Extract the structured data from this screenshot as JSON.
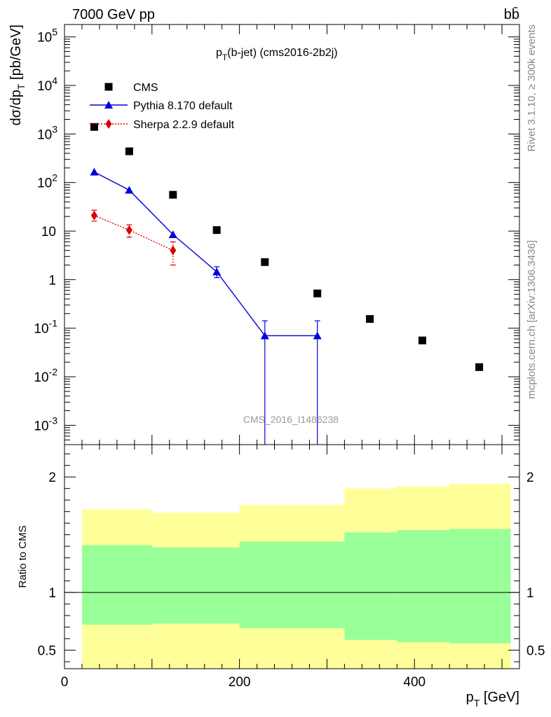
{
  "header": {
    "energy_label": "7000 GeV pp",
    "process_label": "bb̄"
  },
  "side_labels": {
    "rivet": "Rivet 3.1.10, ≥ 300k events",
    "mcplots": "mcplots.cern.ch [arXiv:1306.3436]"
  },
  "chart_data": [
    {
      "type": "scatter",
      "title": "pT(b-jet) (cms2016-2b2j)",
      "ylabel": "dσ/dpT [pb/GeV]",
      "xlabel": "pT [GeV]",
      "y_scale": "log",
      "xlim": [
        0,
        520
      ],
      "ylim": [
        0.0004,
        180000
      ],
      "y_tick_labels": [
        "10^-3",
        "10^-2",
        "10^-1",
        "1",
        "10",
        "10^2",
        "10^3",
        "10^4",
        "10^5"
      ],
      "x_tick_labels": [
        "0",
        "200",
        "400"
      ],
      "watermark": "CMS_2016_I1486238",
      "legend_position": "top-left",
      "series": [
        {
          "name": "CMS",
          "color": "#000000",
          "marker": "square",
          "x": [
            34,
            74,
            124,
            174,
            229,
            289,
            349,
            409,
            474
          ],
          "y": [
            1400,
            440,
            56,
            10.5,
            2.3,
            0.52,
            0.155,
            0.056,
            0.0158
          ]
        },
        {
          "name": "Pythia 8.170 default",
          "color": "#0000dd",
          "marker": "triangle",
          "line": "solid",
          "x": [
            34,
            74,
            124,
            174,
            229,
            289
          ],
          "y": [
            165,
            70,
            8.5,
            1.45,
            0.07,
            0.07
          ],
          "y_err_low": [
            0,
            0,
            0,
            0.35,
            0.07,
            0.07
          ],
          "y_err_high": [
            0,
            0,
            0,
            0.4,
            0.072,
            0.072
          ]
        },
        {
          "name": "Sherpa 2.2.9 default",
          "color": "#dd0000",
          "marker": "diamond",
          "line": "dotted",
          "x": [
            34,
            74,
            124
          ],
          "y": [
            21,
            10.5,
            4
          ],
          "y_err_low": [
            5,
            3,
            2
          ],
          "y_err_high": [
            6,
            3,
            2
          ]
        }
      ]
    },
    {
      "type": "area",
      "ylabel": "Ratio to CMS",
      "xlabel": "pT [GeV]",
      "xlim": [
        0,
        520
      ],
      "ylim": [
        0.34,
        2.28
      ],
      "y_tick_labels": [
        "0.5",
        "1",
        "2"
      ],
      "reference_line": 1,
      "bands": [
        {
          "name": "outer",
          "color": "#ffff99",
          "bins": [
            [
              20,
              100
            ],
            [
              100,
              200
            ],
            [
              200,
              320
            ],
            [
              320,
              380
            ],
            [
              380,
              440
            ],
            [
              440,
              510
            ]
          ],
          "low": [
            0.0,
            0.0,
            0.0,
            0.0,
            0.0,
            0.0
          ],
          "high": [
            1.72,
            1.69,
            1.76,
            1.9,
            1.92,
            1.94
          ]
        },
        {
          "name": "inner",
          "color": "#99ff99",
          "bins": [
            [
              20,
              100
            ],
            [
              100,
              200
            ],
            [
              200,
              320
            ],
            [
              320,
              380
            ],
            [
              380,
              440
            ],
            [
              440,
              510
            ]
          ],
          "low": [
            0.72,
            0.73,
            0.69,
            0.59,
            0.57,
            0.56
          ],
          "high": [
            1.41,
            1.39,
            1.44,
            1.52,
            1.54,
            1.55
          ]
        }
      ]
    }
  ]
}
